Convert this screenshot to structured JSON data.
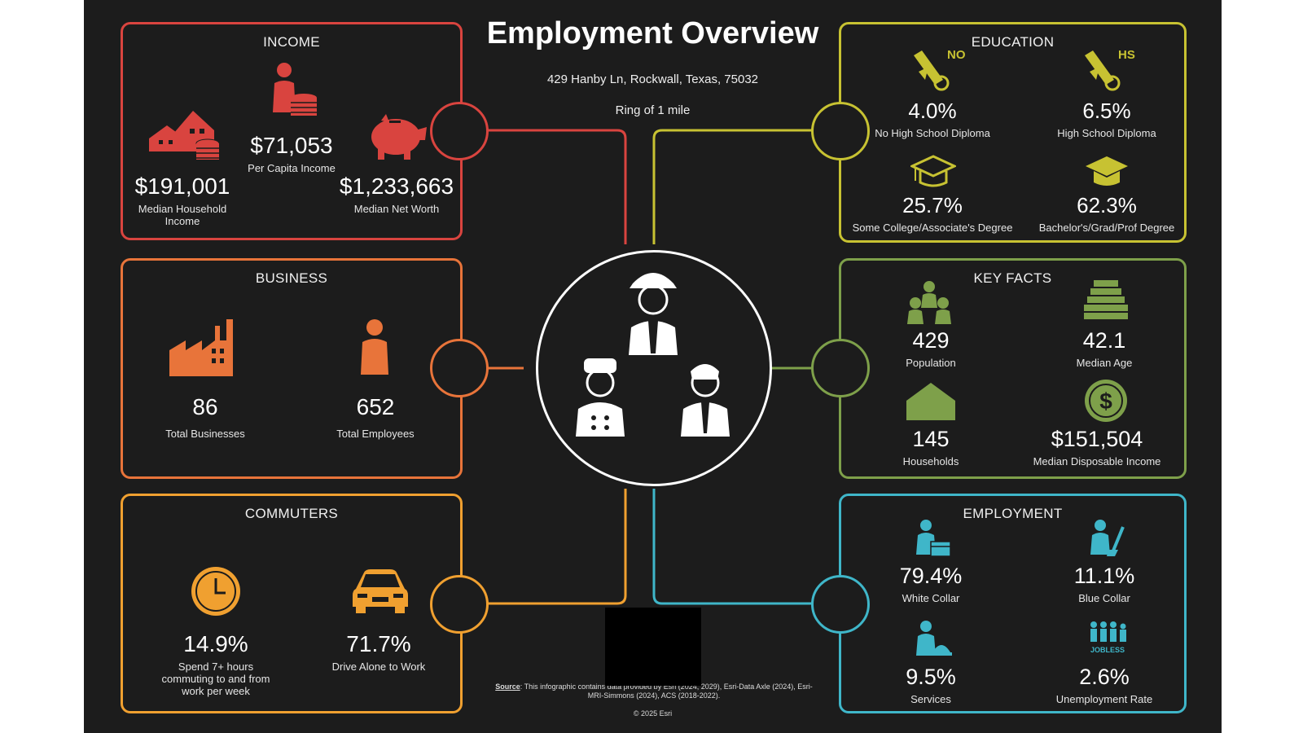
{
  "header": {
    "title": "Employment Overview",
    "address": "429 Hanby Ln, Rockwall, Texas, 75032",
    "ring": "Ring of 1 mile"
  },
  "colors": {
    "income": "#d9443f",
    "business": "#e8743a",
    "commuters": "#f0a030",
    "education": "#c7c232",
    "key_facts": "#7ea04a",
    "employment": "#3fb6c9",
    "background": "#1c1c1c"
  },
  "income": {
    "title": "INCOME",
    "per_capita": {
      "value": "$71,053",
      "label": "Per Capita Income",
      "icon": "person-coins-icon"
    },
    "median_household": {
      "value": "$191,001",
      "label_1": "Median Household",
      "label_2": "Income",
      "icon": "houses-coins-icon"
    },
    "median_net_worth": {
      "value": "$1,233,663",
      "label": "Median Net Worth",
      "icon": "piggy-bank-icon"
    }
  },
  "business": {
    "title": "BUSINESS",
    "total_businesses": {
      "value": "86",
      "label": "Total Businesses",
      "icon": "factory-icon"
    },
    "total_employees": {
      "value": "652",
      "label": "Total Employees",
      "icon": "person-icon"
    }
  },
  "commuters": {
    "title": "COMMUTERS",
    "long_commute": {
      "value": "14.9%",
      "label_1": "Spend 7+ hours",
      "label_2": "commuting to and from",
      "label_3": "work per week",
      "icon": "clock-icon"
    },
    "drive_alone": {
      "value": "71.7%",
      "label": "Drive Alone to Work",
      "icon": "car-icon"
    }
  },
  "education": {
    "title": "EDUCATION",
    "no_hs": {
      "value": "4.0%",
      "label": "No High School Diploma",
      "badge": "NO",
      "icon": "diploma-no-icon"
    },
    "hs": {
      "value": "6.5%",
      "label": "High School Diploma",
      "badge": "HS",
      "icon": "diploma-hs-icon"
    },
    "some_college": {
      "value": "25.7%",
      "label": "Some College/Associate's Degree",
      "icon": "graduation-cap-outline-icon"
    },
    "bachelors": {
      "value": "62.3%",
      "label": "Bachelor's/Grad/Prof Degree",
      "icon": "graduation-cap-icon"
    }
  },
  "key_facts": {
    "title": "KEY FACTS",
    "population": {
      "value": "429",
      "label": "Population",
      "icon": "people-group-icon"
    },
    "median_age": {
      "value": "42.1",
      "label": "Median Age",
      "icon": "money-stack-icon"
    },
    "households": {
      "value": "145",
      "label": "Households",
      "icon": "house-icon"
    },
    "disposable_income": {
      "value": "$151,504",
      "label": "Median Disposable Income",
      "icon": "dollar-coin-icon"
    }
  },
  "employment": {
    "title": "EMPLOYMENT",
    "white_collar": {
      "value": "79.4%",
      "label": "White Collar",
      "icon": "office-worker-icon"
    },
    "blue_collar": {
      "value": "11.1%",
      "label": "Blue Collar",
      "icon": "cleaner-worker-icon"
    },
    "services": {
      "value": "9.5%",
      "label": "Services",
      "icon": "service-worker-icon"
    },
    "unemployment": {
      "value": "2.6%",
      "label": "Unemployment Rate",
      "badge": "JOBLESS",
      "icon": "jobless-people-icon"
    }
  },
  "footer": {
    "source_label": "Source",
    "source_text": ": This infographic contains data provided by Esri (2024, 2029), Esri-Data Axle (2024), Esri-MRI-Simmons (2024), ACS (2018-2022).",
    "copyright": "© 2025 Esri"
  }
}
